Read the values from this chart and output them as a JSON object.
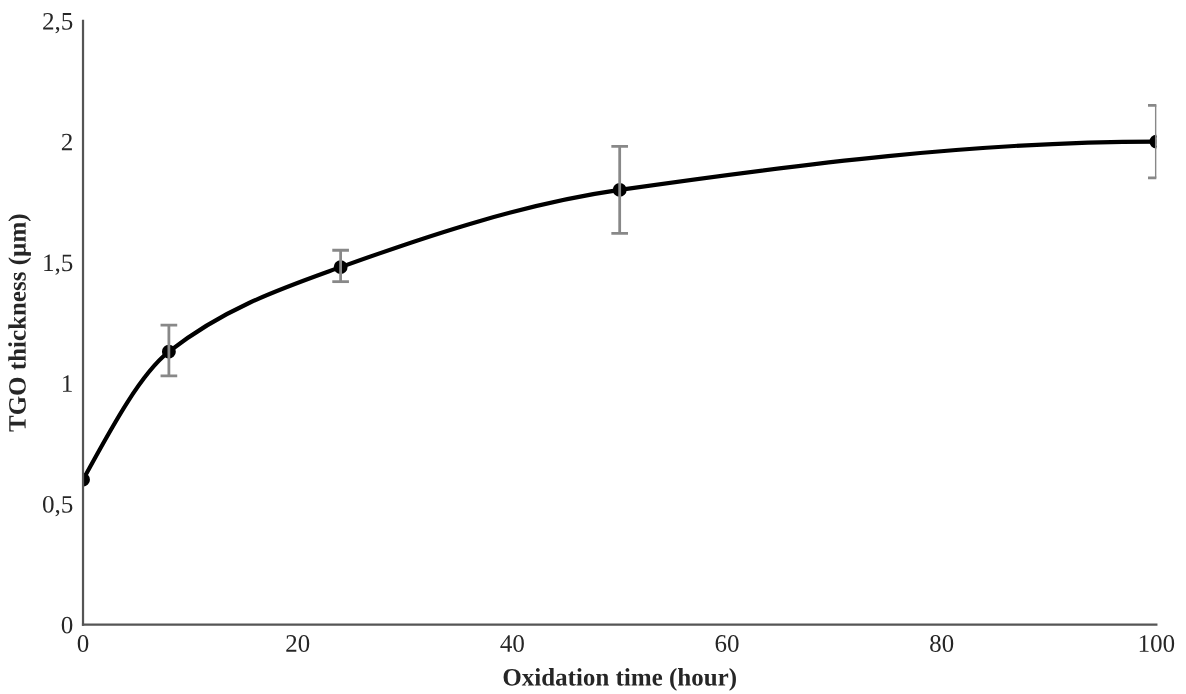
{
  "chart_data": {
    "type": "line",
    "xlabel": "Oxidation time (hour)",
    "ylabel": "TGO thickness (µm)",
    "x": [
      0,
      8,
      24,
      50,
      100
    ],
    "series": [
      {
        "color": "#000000",
        "values": [
          0.6,
          1.13,
          1.48,
          1.8,
          2.0
        ],
        "errors": [
          null,
          [
            1.03,
            1.24
          ],
          [
            1.42,
            1.55
          ],
          [
            1.62,
            1.98
          ],
          [
            1.85,
            2.15
          ]
        ]
      }
    ],
    "xlim": [
      0,
      100
    ],
    "xticks": [
      0,
      20,
      40,
      60,
      80,
      100
    ],
    "ylim": [
      0,
      2.5
    ],
    "yticks": [
      0,
      {
        "value": 0.5,
        "label": "0,5"
      },
      1,
      {
        "value": 1.5,
        "label": "1,5"
      },
      2,
      {
        "value": 2.5,
        "label": "2,5"
      }
    ],
    "grid": false,
    "legend": false,
    "marker": "circle",
    "line_style": "solid"
  }
}
